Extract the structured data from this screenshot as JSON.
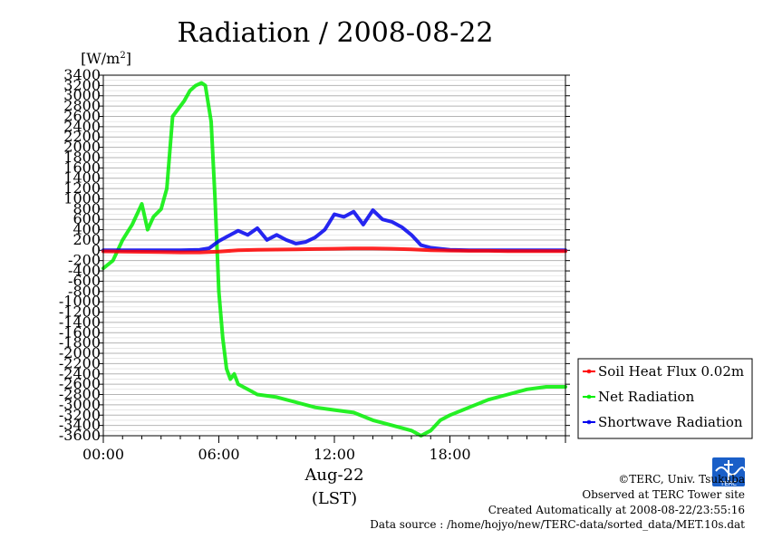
{
  "chart_data": {
    "type": "line",
    "title": "Radiation / 2008-08-22",
    "y_unit_prefix": "[W/m",
    "y_unit_sup": "2",
    "y_unit_suffix": "]",
    "ylim": [
      -3600,
      3400
    ],
    "y_ticks": [
      3400,
      3200,
      3000,
      2800,
      2600,
      2400,
      2200,
      2000,
      1800,
      1600,
      1400,
      1200,
      1000,
      800,
      600,
      400,
      200,
      0,
      -200,
      -400,
      -600,
      -800,
      -1000,
      -1200,
      -1400,
      -1600,
      -1800,
      -2000,
      -2200,
      -2400,
      -2600,
      -2800,
      -3000,
      -3200,
      -3400,
      -3600
    ],
    "y_tick_labels": [
      "3400",
      "3200",
      "3000",
      "2800",
      "2600",
      "2400",
      "2200",
      "2000",
      "1800",
      "1600",
      "1400",
      "1200",
      "1000",
      "800",
      "600",
      "400",
      "200",
      "0",
      "-200",
      "-400",
      "-600",
      "-800",
      "-1000",
      "-1200",
      "-1400",
      "-1600",
      "-1800",
      "-2000",
      "-2200",
      "-2400",
      "-2600",
      "-2800",
      "-3000",
      "-3200",
      "-3400",
      "-3600"
    ],
    "xlim": [
      0,
      24
    ],
    "x_ticks": [
      0,
      6,
      12,
      18
    ],
    "x_tick_labels": [
      "00:00",
      "06:00",
      "12:00",
      "18:00"
    ],
    "x_date_label": "Aug-22",
    "x_axis_label": "(LST)",
    "grid": true,
    "legend_position": "bottom-right",
    "series": [
      {
        "name": "Soil Heat Flux 0.02m",
        "color": "#ff0000",
        "x": [
          0,
          1,
          2,
          3,
          4,
          5,
          6,
          7,
          8,
          9,
          10,
          11,
          12,
          13,
          14,
          15,
          16,
          17,
          18,
          19,
          20,
          21,
          22,
          23,
          24
        ],
        "values": [
          -20,
          -25,
          -30,
          -35,
          -40,
          -40,
          -25,
          0,
          10,
          15,
          20,
          25,
          30,
          35,
          35,
          30,
          20,
          0,
          -5,
          -10,
          -10,
          -15,
          -15,
          -15,
          -15
        ]
      },
      {
        "name": "Net Radiation",
        "color": "#00ee00",
        "x": [
          0,
          0.5,
          1,
          1.5,
          2,
          2.3,
          2.6,
          3,
          3.3,
          3.6,
          3.9,
          4.2,
          4.5,
          4.8,
          5.1,
          5.3,
          5.6,
          5.8,
          6,
          6.2,
          6.4,
          6.6,
          6.8,
          7,
          7.5,
          8,
          9,
          10,
          11,
          12,
          13,
          14,
          15,
          16,
          16.5,
          17,
          17.5,
          18,
          19,
          20,
          21,
          22,
          23,
          24
        ],
        "values": [
          -350,
          -200,
          200,
          500,
          900,
          400,
          650,
          800,
          1200,
          2600,
          2750,
          2900,
          3100,
          3200,
          3250,
          3200,
          2500,
          1000,
          -800,
          -1700,
          -2300,
          -2500,
          -2400,
          -2600,
          -2700,
          -2800,
          -2850,
          -2950,
          -3050,
          -3100,
          -3150,
          -3300,
          -3400,
          -3500,
          -3600,
          -3500,
          -3300,
          -3200,
          -3050,
          -2900,
          -2800,
          -2700,
          -2650,
          -2650
        ]
      },
      {
        "name": "Shortwave Radiation",
        "color": "#0000ee",
        "x": [
          0,
          4,
          5,
          5.5,
          6,
          6.5,
          7,
          7.5,
          8,
          8.5,
          9,
          9.5,
          10,
          10.5,
          11,
          11.5,
          12,
          12.5,
          13,
          13.5,
          14,
          14.5,
          15,
          15.5,
          16,
          16.5,
          17,
          18,
          19,
          20,
          21,
          22,
          23,
          24
        ],
        "values": [
          0,
          0,
          10,
          40,
          180,
          280,
          380,
          300,
          430,
          200,
          300,
          200,
          130,
          160,
          250,
          400,
          700,
          650,
          750,
          500,
          780,
          600,
          550,
          450,
          300,
          100,
          50,
          10,
          0,
          0,
          0,
          0,
          0,
          0
        ]
      }
    ]
  },
  "credits": {
    "copyright": "©TERC, Univ. Tsukuba",
    "observed": "Observed at TERC Tower site",
    "created": "Created Automatically at 2008-08-22/23:55:16",
    "source": "Data source : /home/hojyo/new/TERC-data/sorted_data/MET.10s.dat",
    "logo_text": "TERC"
  }
}
